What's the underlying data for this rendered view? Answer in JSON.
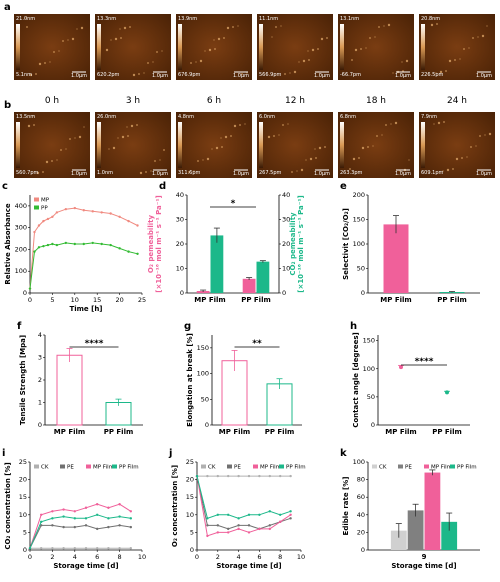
{
  "afm": {
    "rows": [
      {
        "label": "a",
        "images": [
          {
            "top": "21.0nm",
            "bottom": "5.1nm",
            "bar": "1.0μm"
          },
          {
            "top": "13.3nm",
            "bottom": "620.2pm",
            "bar": "1.0μm"
          },
          {
            "top": "13.9nm",
            "bottom": "676.9pm",
            "bar": "1.0μm"
          },
          {
            "top": "11.1nm",
            "bottom": "566.9pm",
            "bar": "1.0μm"
          },
          {
            "top": "13.1nm",
            "bottom": "-66.7pm",
            "bar": "1.0μm"
          },
          {
            "top": "20.8nm",
            "bottom": "226.5pm",
            "bar": "1.0μm"
          }
        ]
      },
      {
        "label": "b",
        "images": [
          {
            "top": "13.5nm",
            "bottom": "560.7pm",
            "bar": "1.0μm"
          },
          {
            "top": "26.0nm",
            "bottom": "1.0nm",
            "bar": "1.0μm"
          },
          {
            "top": "4.8nm",
            "bottom": "311.6pm",
            "bar": "1.0μm"
          },
          {
            "top": "6.0nm",
            "bottom": "267.5pm",
            "bar": "1.0μm"
          },
          {
            "top": "6.8nm",
            "bottom": "263.3pm",
            "bar": "1.0μm"
          },
          {
            "top": "7.9nm",
            "bottom": "609.1pm",
            "bar": "1.0μm"
          }
        ]
      }
    ],
    "times": [
      "0 h",
      "3 h",
      "6 h",
      "12 h",
      "18 h",
      "24 h"
    ]
  },
  "chart_data": [
    {
      "label": "c",
      "type": "line",
      "ylabel": [
        "Relative Absorbance"
      ],
      "xlabel": "Time [h]",
      "x": [
        0,
        1,
        2,
        3,
        4,
        5,
        6,
        8,
        10,
        12,
        14,
        16,
        18,
        20,
        22,
        24
      ],
      "series": [
        {
          "name": "MP",
          "color": "#f08a80",
          "values": [
            20,
            280,
            310,
            330,
            340,
            350,
            370,
            385,
            390,
            380,
            375,
            370,
            365,
            350,
            330,
            310
          ]
        },
        {
          "name": "PP",
          "color": "#33bb33",
          "values": [
            20,
            190,
            210,
            215,
            220,
            225,
            220,
            230,
            225,
            225,
            230,
            225,
            220,
            205,
            190,
            180
          ]
        }
      ],
      "xlim": [
        0,
        25
      ],
      "xticks": [
        0,
        5,
        10,
        15,
        20,
        25
      ],
      "ylim": [
        0,
        450
      ],
      "yticks": [
        0,
        100,
        200,
        300,
        400
      ],
      "legend": "top-left"
    },
    {
      "label": "d",
      "type": "bar",
      "ylabel": [
        "O₂ pemeability",
        "[×10⁻¹⁶ mol m⁻¹ s⁻¹ Pa⁻¹]"
      ],
      "ylabel_color": "#f0609a",
      "y2label": [
        "CO₂ pemeability",
        "[×10⁻¹⁶ mol m⁻¹ s⁻¹ Pa⁻¹]"
      ],
      "y2label_color": "#1cb88a",
      "categories": [
        "MP Film",
        "PP Film"
      ],
      "series": [
        {
          "name": "O₂",
          "color": "#f0609a",
          "values": [
            0.8,
            5.8
          ],
          "errors": [
            0.4,
            0.5
          ]
        },
        {
          "name": "CO₂",
          "color": "#1cb88a",
          "axis": "y2",
          "values": [
            23.5,
            12.8
          ],
          "errors": [
            3,
            0.4
          ]
        }
      ],
      "ylim": [
        0,
        40
      ],
      "yticks": [
        0,
        10,
        20,
        30,
        40
      ],
      "y2lim": [
        0,
        40
      ],
      "y2ticks": [
        0,
        10,
        20,
        30,
        40
      ],
      "annotation": "*"
    },
    {
      "label": "e",
      "type": "bar",
      "ylabel": [
        "Selectivit [CO₂/O₂]"
      ],
      "categories": [
        "MP Film",
        "PP Film"
      ],
      "series": [
        {
          "colors": [
            "#f0609a",
            "#1cb88a"
          ],
          "values": [
            140,
            2
          ],
          "errors": [
            18,
            1
          ]
        }
      ],
      "ylim": [
        0,
        200
      ],
      "yticks": [
        0,
        50,
        100,
        150,
        200
      ]
    },
    {
      "label": "f",
      "type": "bar",
      "hollow": true,
      "ylabel": [
        "Tensile Strength [Mpa]"
      ],
      "categories": [
        "MP Film",
        "PP Film"
      ],
      "series": [
        {
          "colors": [
            "#f0609a",
            "#1cb88a"
          ],
          "values": [
            3.1,
            1.0
          ],
          "errors": [
            0.3,
            0.15
          ]
        }
      ],
      "ylim": [
        0,
        4
      ],
      "yticks": [
        0,
        1,
        2,
        3,
        4
      ],
      "annotation": "****"
    },
    {
      "label": "g",
      "type": "bar",
      "hollow": true,
      "ylabel": [
        "Elongation at break [%]"
      ],
      "categories": [
        "MP Film",
        "PP Film"
      ],
      "series": [
        {
          "colors": [
            "#f0609a",
            "#1cb88a"
          ],
          "values": [
            125,
            80
          ],
          "errors": [
            20,
            10
          ]
        }
      ],
      "ylim": [
        0,
        175
      ],
      "yticks": [
        0,
        50,
        100,
        150
      ],
      "annotation": "**"
    },
    {
      "label": "h",
      "type": "dot",
      "ylabel": [
        "Contact angle [degrees]"
      ],
      "categories": [
        "MP Film",
        "PP Film"
      ],
      "series": [
        {
          "colors": [
            "#f0609a",
            "#1cb88a"
          ],
          "values": [
            103,
            58
          ],
          "errors": [
            3,
            2
          ]
        }
      ],
      "ylim": [
        0,
        160
      ],
      "yticks": [
        0,
        50,
        100,
        150
      ],
      "annotation": "****"
    },
    {
      "label": "i",
      "type": "line",
      "ylabel": [
        "CO₂ concentration [%]"
      ],
      "xlabel": "Storage time [d]",
      "x": [
        0,
        1,
        2,
        3,
        4,
        5,
        6,
        7,
        8,
        9
      ],
      "series": [
        {
          "name": "CK",
          "color": "#b0b0b0",
          "values": [
            0.5,
            0.5,
            0.5,
            0.5,
            0.5,
            0.5,
            0.5,
            0.5,
            0.5,
            0.5
          ]
        },
        {
          "name": "PE",
          "color": "#707070",
          "values": [
            0.5,
            7,
            7,
            6.5,
            6.5,
            7,
            6,
            6.5,
            7,
            6.5
          ]
        },
        {
          "name": "MP Film",
          "color": "#f0609a",
          "values": [
            0.5,
            10,
            11,
            11.5,
            11,
            12,
            13,
            12,
            13,
            11
          ]
        },
        {
          "name": "PP Film",
          "color": "#1cb88a",
          "values": [
            0.5,
            8,
            9,
            9.5,
            9,
            9,
            10,
            9,
            9.5,
            9
          ]
        }
      ],
      "xlim": [
        0,
        10
      ],
      "xticks": [
        0,
        2,
        4,
        6,
        8,
        10
      ],
      "ylim": [
        0,
        25
      ],
      "yticks": [
        0,
        5,
        10,
        15,
        20,
        25
      ],
      "legend": "top"
    },
    {
      "label": "j",
      "type": "line",
      "ylabel": [
        "O₂ concentration [%]"
      ],
      "xlabel": "Storage time [d]",
      "x": [
        0,
        1,
        2,
        3,
        4,
        5,
        6,
        7,
        8,
        9
      ],
      "series": [
        {
          "name": "CK",
          "color": "#b0b0b0",
          "values": [
            21,
            21,
            21,
            21,
            21,
            21,
            21,
            21,
            21,
            21
          ]
        },
        {
          "name": "PE",
          "color": "#707070",
          "values": [
            21,
            7,
            7,
            6,
            7,
            7,
            6,
            7,
            8,
            9
          ]
        },
        {
          "name": "MP Film",
          "color": "#f0609a",
          "values": [
            21,
            4,
            5,
            5,
            6,
            5,
            6,
            6,
            8,
            10
          ]
        },
        {
          "name": "PP Film",
          "color": "#1cb88a",
          "values": [
            21,
            9,
            10,
            10,
            9,
            10,
            10,
            11,
            10,
            11
          ]
        }
      ],
      "xlim": [
        0,
        10
      ],
      "xticks": [
        0,
        2,
        4,
        6,
        8,
        10
      ],
      "ylim": [
        0,
        25
      ],
      "yticks": [
        0,
        5,
        10,
        15,
        20,
        25
      ],
      "legend": "top"
    },
    {
      "label": "k",
      "type": "bar",
      "ylabel": [
        "Edible rate [%]"
      ],
      "xlabel": "Storage time [d]",
      "categories": [
        "9"
      ],
      "series": [
        {
          "name": "CK",
          "color": "#d0d0d0",
          "values": [
            22
          ],
          "errors": [
            8
          ]
        },
        {
          "name": "PE",
          "color": "#808080",
          "values": [
            45
          ],
          "errors": [
            7
          ]
        },
        {
          "name": "MP Film",
          "color": "#f0609a",
          "values": [
            88
          ],
          "errors": [
            3
          ]
        },
        {
          "name": "PP Film",
          "color": "#1cb88a",
          "values": [
            32
          ],
          "errors": [
            10
          ]
        }
      ],
      "ylim": [
        0,
        100
      ],
      "yticks": [
        0,
        20,
        40,
        60,
        80,
        100
      ],
      "legend": "top"
    }
  ]
}
